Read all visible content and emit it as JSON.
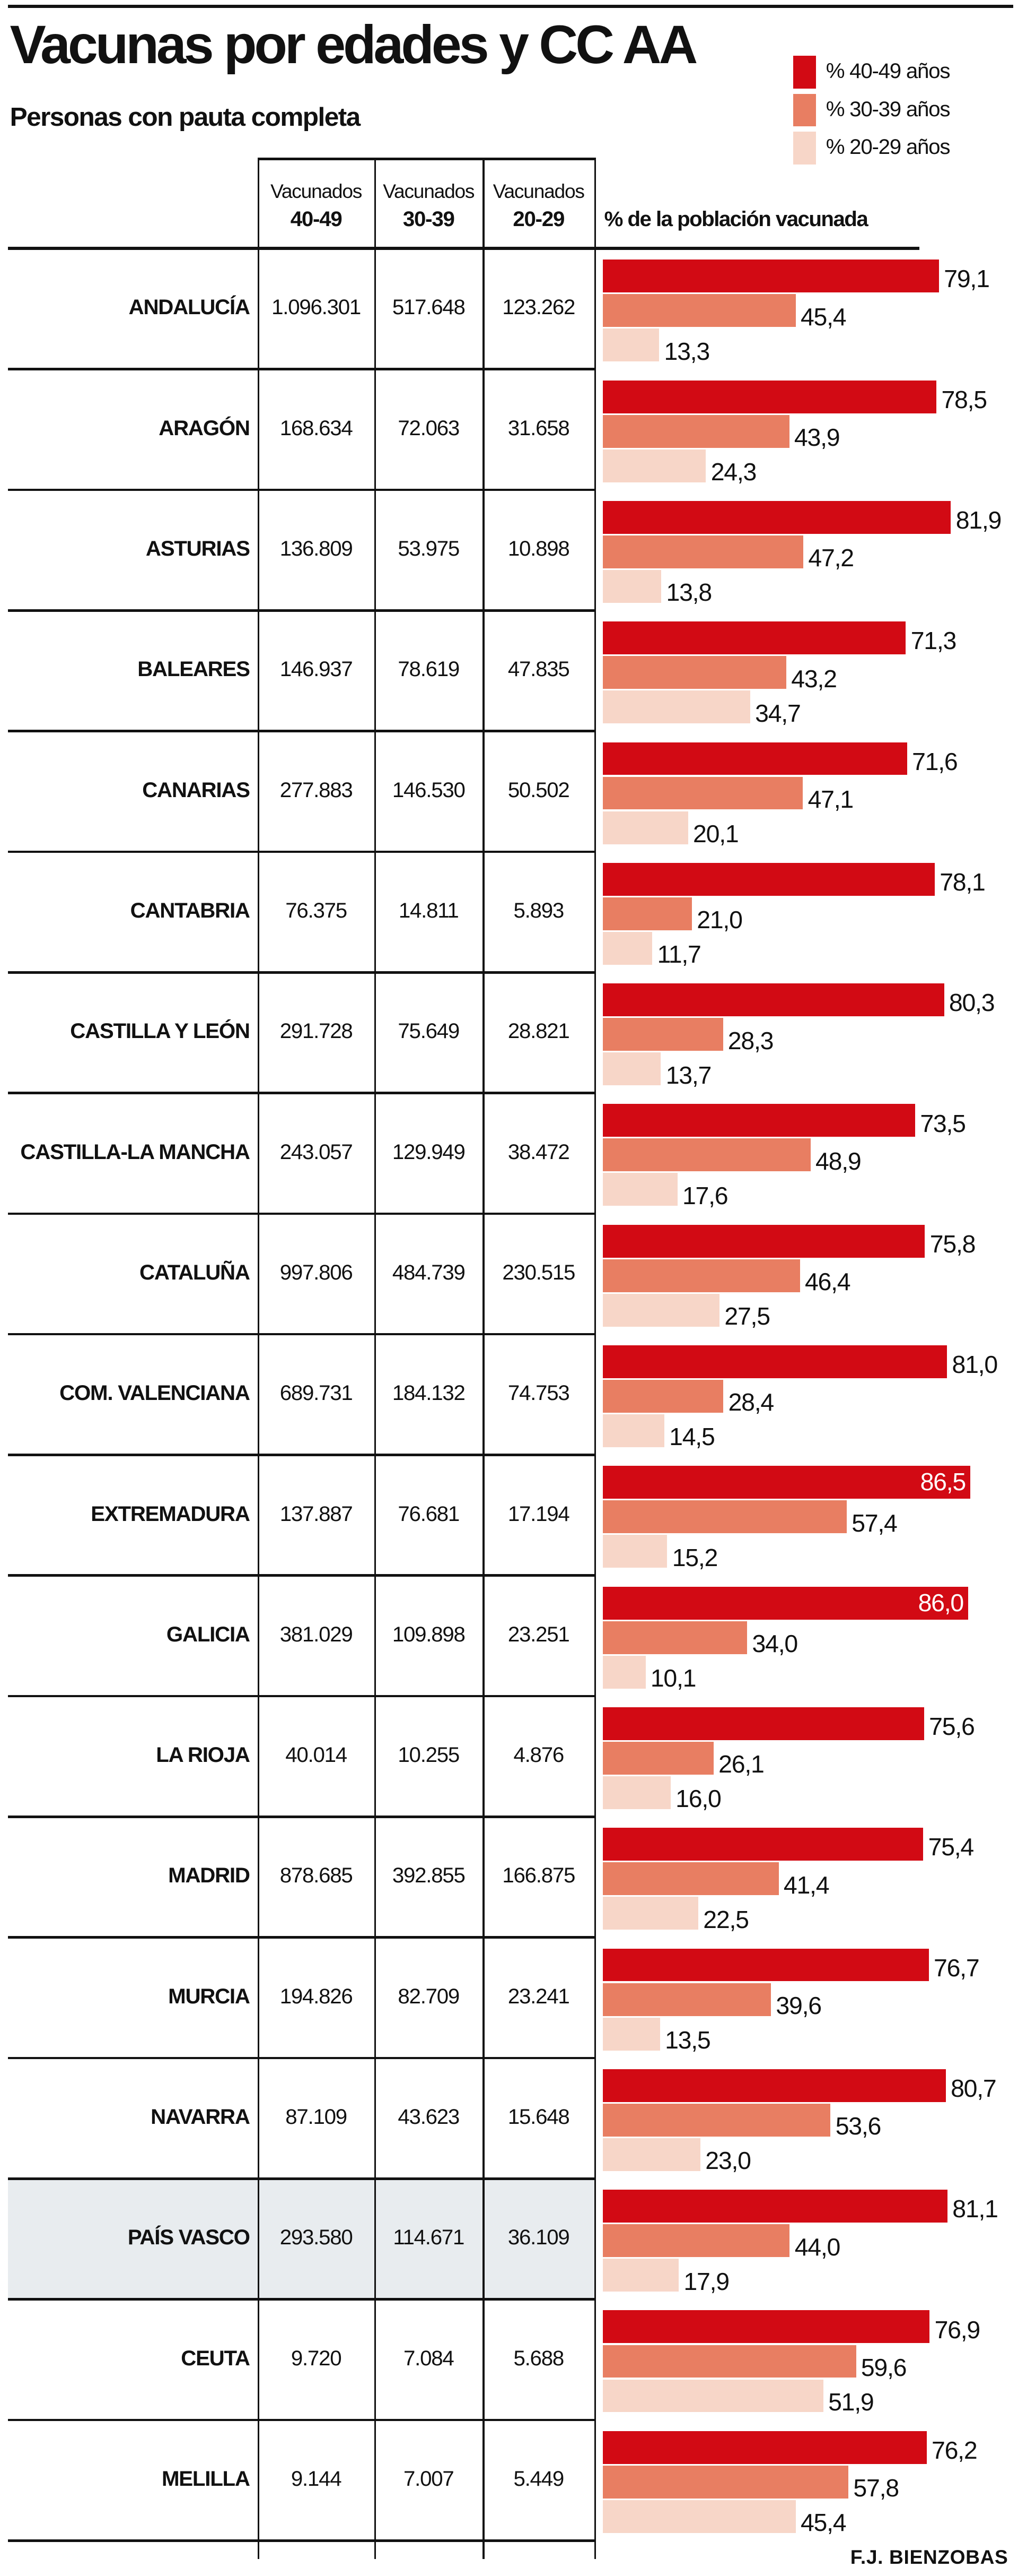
{
  "chart_data": {
    "type": "bar",
    "orientation": "horizontal",
    "title": "Vacunas por edades y CC AA",
    "subtitle": "Personas con pauta completa",
    "table_headers": [
      {
        "top": "Vacunados",
        "bottom": "40-49"
      },
      {
        "top": "Vacunados",
        "bottom": "30-39"
      },
      {
        "top": "Vacunados",
        "bottom": "20-29"
      }
    ],
    "bar_header": "% de la población vacunada",
    "legend": [
      {
        "label": "% 40-49 años",
        "color": "#d20a14"
      },
      {
        "label": "% 30-39 años",
        "color": "#e87e62"
      },
      {
        "label": "% 20-29 años",
        "color": "#f7d6c8"
      }
    ],
    "highlighted_row": "PAÍS VASCO",
    "xlim": [
      0,
      100
    ],
    "rows": [
      {
        "region": "ANDALUCÍA",
        "vac": [
          "1.096.301",
          "517.648",
          "123.262"
        ],
        "pct": [
          79.1,
          45.4,
          13.3
        ],
        "pct_label": [
          "79,1",
          "45,4",
          "13,3"
        ]
      },
      {
        "region": "ARAGÓN",
        "vac": [
          "168.634",
          "72.063",
          "31.658"
        ],
        "pct": [
          78.5,
          43.9,
          24.3
        ],
        "pct_label": [
          "78,5",
          "43,9",
          "24,3"
        ]
      },
      {
        "region": "ASTURIAS",
        "vac": [
          "136.809",
          "53.975",
          "10.898"
        ],
        "pct": [
          81.9,
          47.2,
          13.8
        ],
        "pct_label": [
          "81,9",
          "47,2",
          "13,8"
        ]
      },
      {
        "region": "BALEARES",
        "vac": [
          "146.937",
          "78.619",
          "47.835"
        ],
        "pct": [
          71.3,
          43.2,
          34.7
        ],
        "pct_label": [
          "71,3",
          "43,2",
          "34,7"
        ]
      },
      {
        "region": "CANARIAS",
        "vac": [
          "277.883",
          "146.530",
          "50.502"
        ],
        "pct": [
          71.6,
          47.1,
          20.1
        ],
        "pct_label": [
          "71,6",
          "47,1",
          "20,1"
        ]
      },
      {
        "region": "CANTABRIA",
        "vac": [
          "76.375",
          "14.811",
          "5.893"
        ],
        "pct": [
          78.1,
          21.0,
          11.7
        ],
        "pct_label": [
          "78,1",
          "21,0",
          "11,7"
        ]
      },
      {
        "region": "CASTILLA Y LEÓN",
        "vac": [
          "291.728",
          "75.649",
          "28.821"
        ],
        "pct": [
          80.3,
          28.3,
          13.7
        ],
        "pct_label": [
          "80,3",
          "28,3",
          "13,7"
        ]
      },
      {
        "region": "CASTILLA-LA MANCHA",
        "vac": [
          "243.057",
          "129.949",
          "38.472"
        ],
        "pct": [
          73.5,
          48.9,
          17.6
        ],
        "pct_label": [
          "73,5",
          "48,9",
          "17,6"
        ]
      },
      {
        "region": "CATALUÑA",
        "vac": [
          "997.806",
          "484.739",
          "230.515"
        ],
        "pct": [
          75.8,
          46.4,
          27.5
        ],
        "pct_label": [
          "75,8",
          "46,4",
          "27,5"
        ]
      },
      {
        "region": "COM. VALENCIANA",
        "vac": [
          "689.731",
          "184.132",
          "74.753"
        ],
        "pct": [
          81.0,
          28.4,
          14.5
        ],
        "pct_label": [
          "81,0",
          "28,4",
          "14,5"
        ]
      },
      {
        "region": "EXTREMADURA",
        "vac": [
          "137.887",
          "76.681",
          "17.194"
        ],
        "pct": [
          86.5,
          57.4,
          15.2
        ],
        "pct_label": [
          "86,5",
          "57,4",
          "15,2"
        ]
      },
      {
        "region": "GALICIA",
        "vac": [
          "381.029",
          "109.898",
          "23.251"
        ],
        "pct": [
          86.0,
          34.0,
          10.1
        ],
        "pct_label": [
          "86,0",
          "34,0",
          "10,1"
        ]
      },
      {
        "region": "LA RIOJA",
        "vac": [
          "40.014",
          "10.255",
          "4.876"
        ],
        "pct": [
          75.6,
          26.1,
          16.0
        ],
        "pct_label": [
          "75,6",
          "26,1",
          "16,0"
        ]
      },
      {
        "region": "MADRID",
        "vac": [
          "878.685",
          "392.855",
          "166.875"
        ],
        "pct": [
          75.4,
          41.4,
          22.5
        ],
        "pct_label": [
          "75,4",
          "41,4",
          "22,5"
        ]
      },
      {
        "region": "MURCIA",
        "vac": [
          "194.826",
          "82.709",
          "23.241"
        ],
        "pct": [
          76.7,
          39.6,
          13.5
        ],
        "pct_label": [
          "76,7",
          "39,6",
          "13,5"
        ]
      },
      {
        "region": "NAVARRA",
        "vac": [
          "87.109",
          "43.623",
          "15.648"
        ],
        "pct": [
          80.7,
          53.6,
          23.0
        ],
        "pct_label": [
          "80,7",
          "53,6",
          "23,0"
        ]
      },
      {
        "region": "PAÍS VASCO",
        "vac": [
          "293.580",
          "114.671",
          "36.109"
        ],
        "pct": [
          81.1,
          44.0,
          17.9
        ],
        "pct_label": [
          "81,1",
          "44,0",
          "17,9"
        ]
      },
      {
        "region": "CEUTA",
        "vac": [
          "9.720",
          "7.084",
          "5.688"
        ],
        "pct": [
          76.9,
          59.6,
          51.9
        ],
        "pct_label": [
          "76,9",
          "59,6",
          "51,9"
        ]
      },
      {
        "region": "MELILLA",
        "vac": [
          "9.144",
          "7.007",
          "5.449"
        ],
        "pct": [
          76.2,
          57.8,
          45.4
        ],
        "pct_label": [
          "76,2",
          "57,8",
          "45,4"
        ]
      }
    ]
  },
  "credit": "F.J. BIENZOBAS",
  "highlight_color": "#e8ecef"
}
